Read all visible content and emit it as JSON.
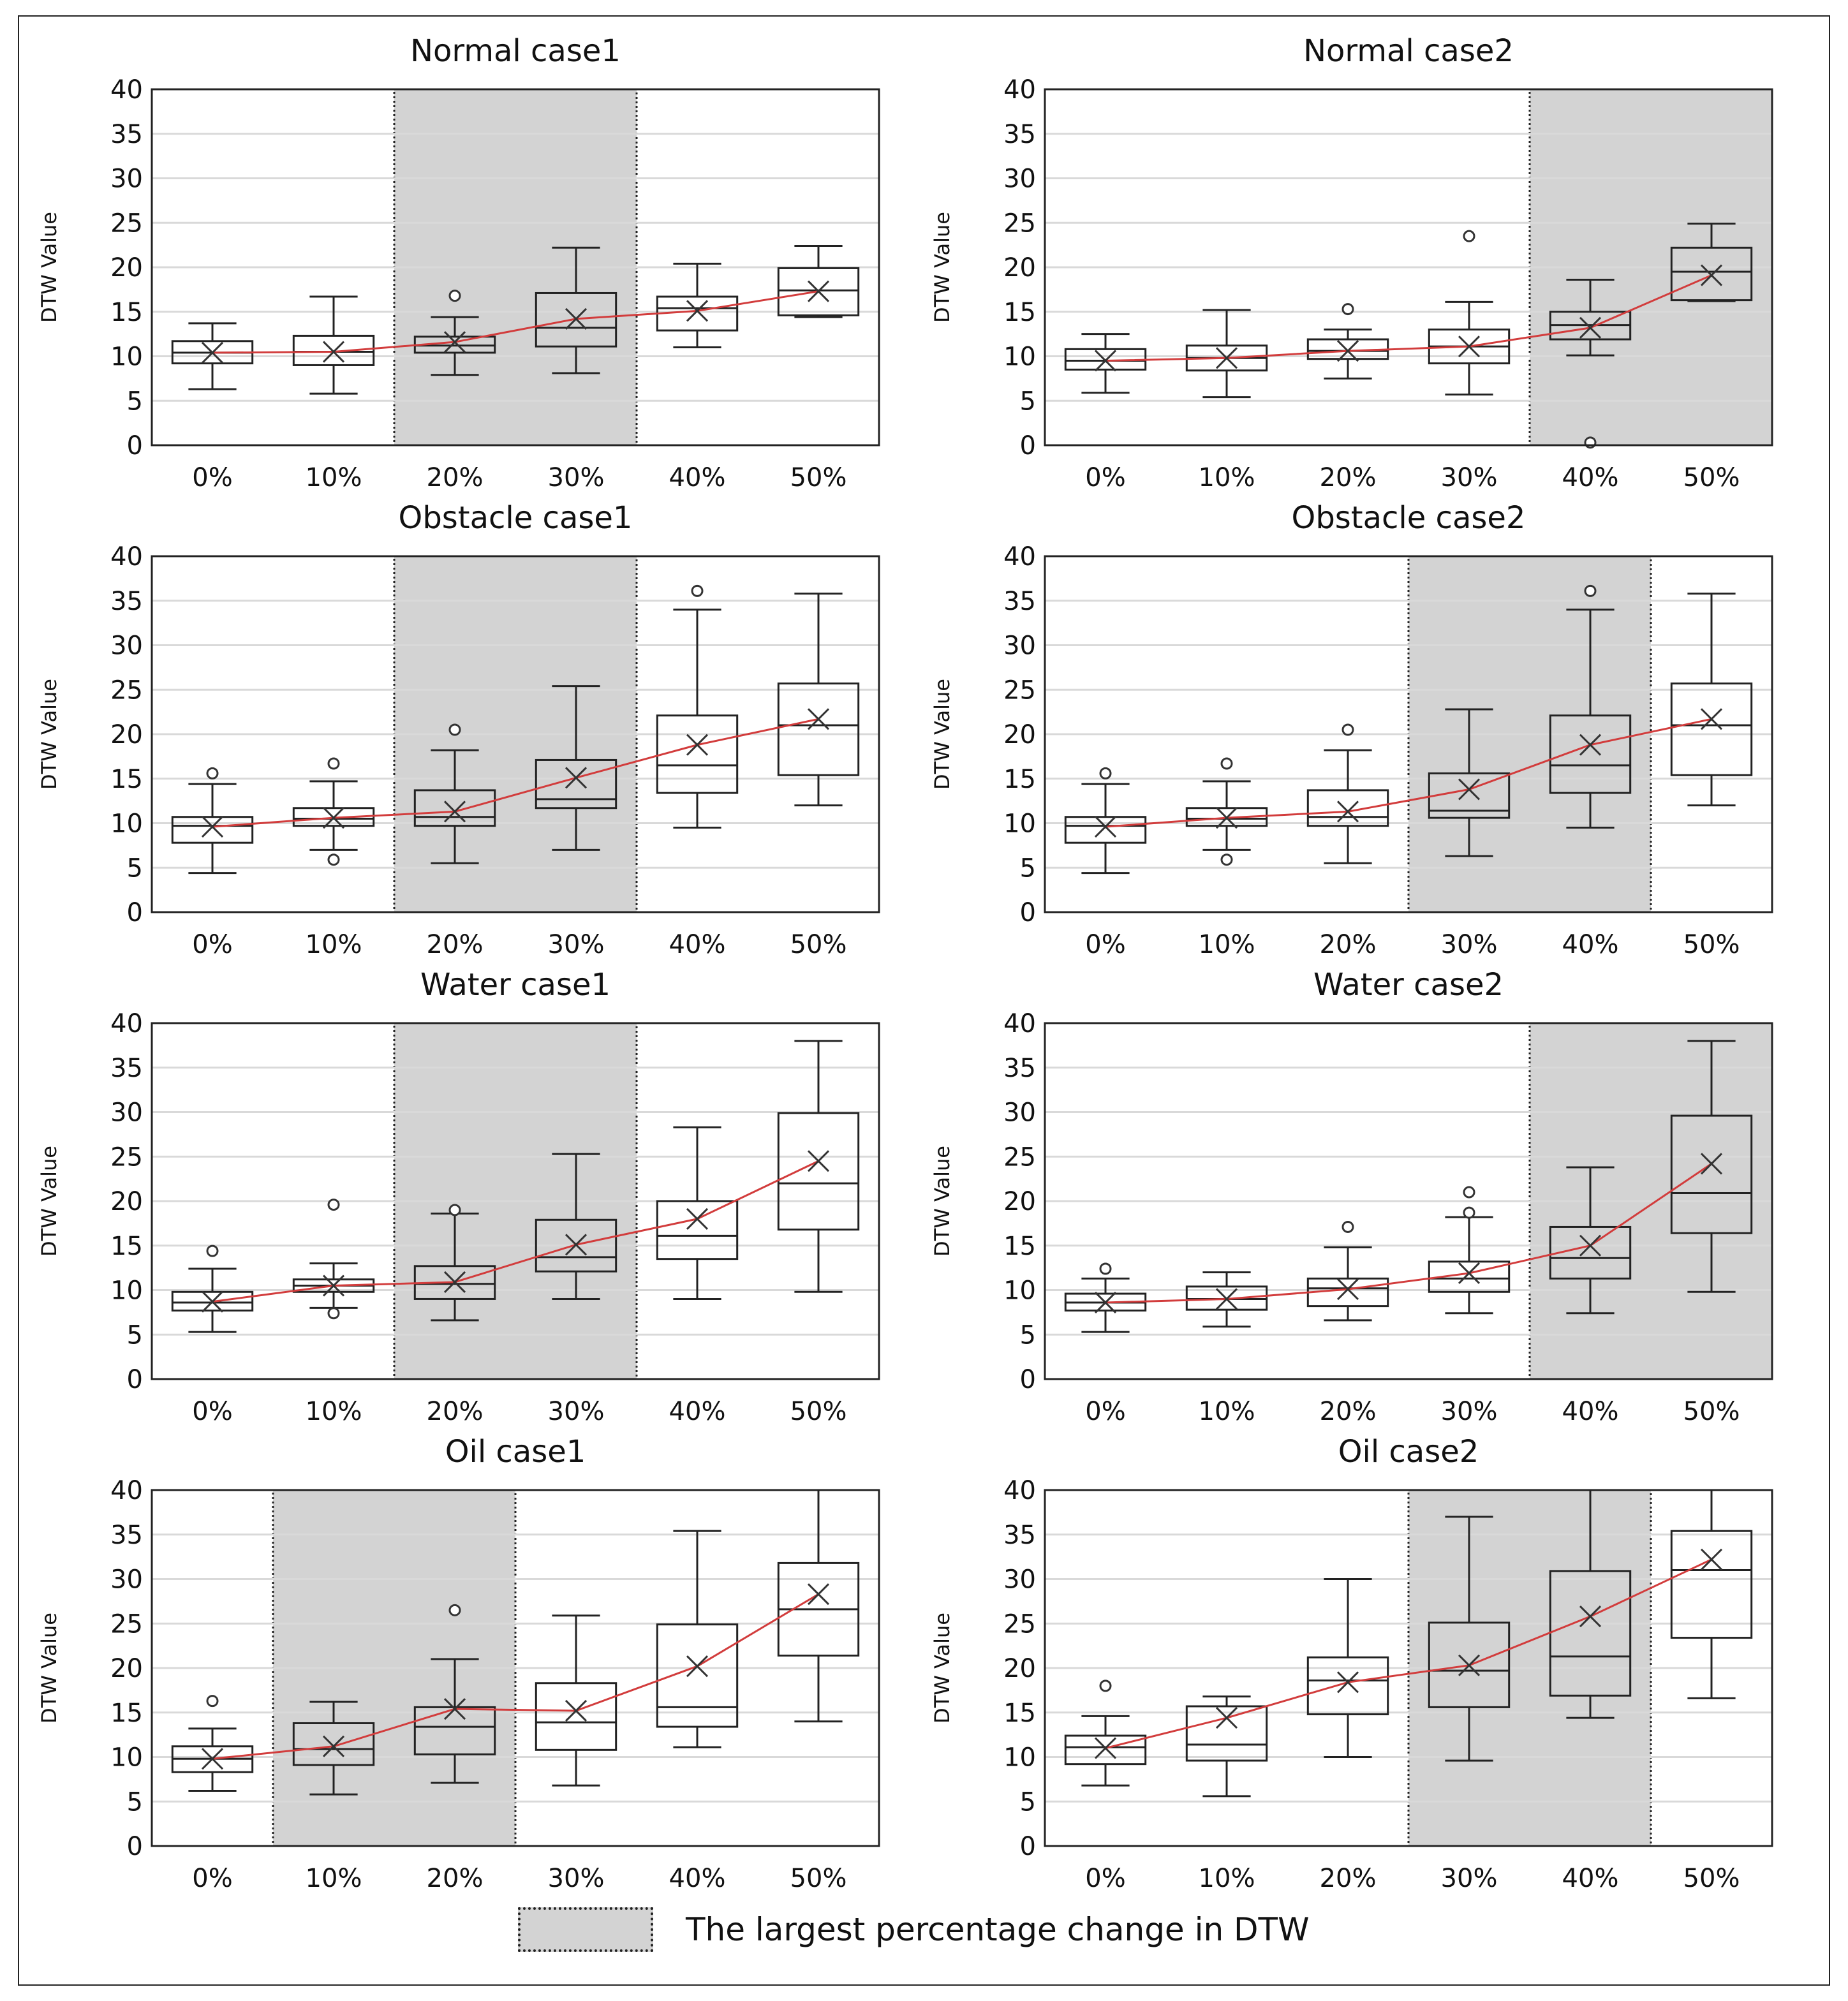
{
  "chart_data": [
    {
      "type": "box",
      "title": "Normal case1",
      "ylabel": "DTW Value",
      "ylim": [
        0,
        40
      ],
      "categories": [
        "0%",
        "10%",
        "20%",
        "30%",
        "40%",
        "50%"
      ],
      "highlight": [
        "20%",
        "30%"
      ],
      "boxes": [
        {
          "min": 6.3,
          "q1": 9.2,
          "median": 10.4,
          "q3": 11.7,
          "max": 13.7,
          "mean": 10.4,
          "outliers": []
        },
        {
          "min": 5.8,
          "q1": 9.0,
          "median": 10.5,
          "q3": 12.3,
          "max": 16.7,
          "mean": 10.5,
          "outliers": []
        },
        {
          "min": 7.9,
          "q1": 10.4,
          "median": 11.2,
          "q3": 12.2,
          "max": 14.4,
          "mean": 11.6,
          "outliers": [
            16.8
          ]
        },
        {
          "min": 8.1,
          "q1": 11.1,
          "median": 13.2,
          "q3": 17.1,
          "max": 22.2,
          "mean": 14.2,
          "outliers": []
        },
        {
          "min": 11.0,
          "q1": 12.9,
          "median": 15.4,
          "q3": 16.7,
          "max": 20.4,
          "mean": 15.1,
          "outliers": []
        },
        {
          "min": 14.4,
          "q1": 14.6,
          "median": 17.4,
          "q3": 19.9,
          "max": 22.4,
          "mean": 17.3,
          "outliers": []
        }
      ]
    },
    {
      "type": "box",
      "title": "Normal case2",
      "ylabel": "DTW Value",
      "ylim": [
        0,
        40
      ],
      "categories": [
        "0%",
        "10%",
        "20%",
        "30%",
        "40%",
        "50%"
      ],
      "highlight": [
        "40%",
        "50%"
      ],
      "boxes": [
        {
          "min": 5.9,
          "q1": 8.5,
          "median": 9.5,
          "q3": 10.8,
          "max": 12.5,
          "mean": 9.5,
          "outliers": []
        },
        {
          "min": 5.4,
          "q1": 8.4,
          "median": 9.8,
          "q3": 11.2,
          "max": 15.2,
          "mean": 9.8,
          "outliers": []
        },
        {
          "min": 7.5,
          "q1": 9.7,
          "median": 10.6,
          "q3": 11.9,
          "max": 13.0,
          "mean": 10.6,
          "outliers": [
            15.3
          ]
        },
        {
          "min": 5.7,
          "q1": 9.2,
          "median": 11.1,
          "q3": 13.0,
          "max": 16.1,
          "mean": 11.1,
          "outliers": [
            23.5
          ]
        },
        {
          "min": 10.1,
          "q1": 11.9,
          "median": 13.5,
          "q3": 15.0,
          "max": 18.6,
          "mean": 13.2,
          "outliers": [
            0.3
          ]
        },
        {
          "min": 16.2,
          "q1": 16.3,
          "median": 19.5,
          "q3": 22.2,
          "max": 24.9,
          "mean": 19.1,
          "outliers": []
        }
      ]
    },
    {
      "type": "box",
      "title": "Obstacle case1",
      "ylabel": "DTW Value",
      "ylim": [
        0,
        40
      ],
      "categories": [
        "0%",
        "10%",
        "20%",
        "30%",
        "40%",
        "50%"
      ],
      "highlight": [
        "20%",
        "30%"
      ],
      "boxes": [
        {
          "min": 4.4,
          "q1": 7.8,
          "median": 9.7,
          "q3": 10.7,
          "max": 14.4,
          "mean": 9.6,
          "outliers": [
            15.6
          ]
        },
        {
          "min": 7.0,
          "q1": 9.7,
          "median": 10.5,
          "q3": 11.7,
          "max": 14.7,
          "mean": 10.6,
          "outliers": [
            5.9,
            16.7
          ]
        },
        {
          "min": 5.5,
          "q1": 9.7,
          "median": 10.7,
          "q3": 13.7,
          "max": 18.2,
          "mean": 11.3,
          "outliers": [
            20.5
          ]
        },
        {
          "min": 7.0,
          "q1": 11.7,
          "median": 12.7,
          "q3": 17.1,
          "max": 25.4,
          "mean": 15.1,
          "outliers": []
        },
        {
          "min": 9.5,
          "q1": 13.4,
          "median": 16.5,
          "q3": 22.1,
          "max": 34.0,
          "mean": 18.8,
          "outliers": [
            36.1
          ]
        },
        {
          "min": 12.0,
          "q1": 15.4,
          "median": 21.0,
          "q3": 25.7,
          "max": 35.8,
          "mean": 21.7,
          "outliers": []
        }
      ]
    },
    {
      "type": "box",
      "title": "Obstacle case2",
      "ylabel": "DTW Value",
      "ylim": [
        0,
        40
      ],
      "categories": [
        "0%",
        "10%",
        "20%",
        "30%",
        "40%",
        "50%"
      ],
      "highlight": [
        "30%",
        "40%"
      ],
      "boxes": [
        {
          "min": 4.4,
          "q1": 7.8,
          "median": 9.7,
          "q3": 10.7,
          "max": 14.4,
          "mean": 9.6,
          "outliers": [
            15.6
          ]
        },
        {
          "min": 7.0,
          "q1": 9.7,
          "median": 10.5,
          "q3": 11.7,
          "max": 14.7,
          "mean": 10.6,
          "outliers": [
            5.9,
            16.7
          ]
        },
        {
          "min": 5.5,
          "q1": 9.7,
          "median": 10.7,
          "q3": 13.7,
          "max": 18.2,
          "mean": 11.3,
          "outliers": [
            20.5
          ]
        },
        {
          "min": 6.3,
          "q1": 10.6,
          "median": 11.4,
          "q3": 15.6,
          "max": 22.8,
          "mean": 13.8,
          "outliers": []
        },
        {
          "min": 9.5,
          "q1": 13.4,
          "median": 16.5,
          "q3": 22.1,
          "max": 34.0,
          "mean": 18.8,
          "outliers": [
            36.1
          ]
        },
        {
          "min": 12.0,
          "q1": 15.4,
          "median": 21.0,
          "q3": 25.7,
          "max": 35.8,
          "mean": 21.7,
          "outliers": []
        }
      ]
    },
    {
      "type": "box",
      "title": "Water case1",
      "ylabel": "DTW Value",
      "ylim": [
        0,
        40
      ],
      "categories": [
        "0%",
        "10%",
        "20%",
        "30%",
        "40%",
        "50%"
      ],
      "highlight": [
        "20%",
        "30%"
      ],
      "boxes": [
        {
          "min": 5.3,
          "q1": 7.7,
          "median": 8.6,
          "q3": 9.8,
          "max": 12.4,
          "mean": 8.7,
          "outliers": [
            14.4
          ]
        },
        {
          "min": 8.0,
          "q1": 9.8,
          "median": 10.5,
          "q3": 11.2,
          "max": 13.0,
          "mean": 10.5,
          "outliers": [
            7.4,
            19.6
          ]
        },
        {
          "min": 6.6,
          "q1": 9.0,
          "median": 10.7,
          "q3": 12.7,
          "max": 18.6,
          "mean": 10.9,
          "outliers": [
            19.0
          ]
        },
        {
          "min": 9.0,
          "q1": 12.1,
          "median": 13.7,
          "q3": 17.9,
          "max": 25.3,
          "mean": 15.1,
          "outliers": []
        },
        {
          "min": 9.0,
          "q1": 13.5,
          "median": 16.1,
          "q3": 20.0,
          "max": 28.3,
          "mean": 18.0,
          "outliers": []
        },
        {
          "min": 9.8,
          "q1": 16.8,
          "median": 22.0,
          "q3": 29.9,
          "max": 38.0,
          "mean": 24.5,
          "outliers": []
        }
      ]
    },
    {
      "type": "box",
      "title": "Water case2",
      "ylabel": "DTW Value",
      "ylim": [
        0,
        40
      ],
      "categories": [
        "0%",
        "10%",
        "20%",
        "30%",
        "40%",
        "50%"
      ],
      "highlight": [
        "40%",
        "50%"
      ],
      "boxes": [
        {
          "min": 5.3,
          "q1": 7.7,
          "median": 8.6,
          "q3": 9.6,
          "max": 11.3,
          "mean": 8.6,
          "outliers": [
            12.4
          ]
        },
        {
          "min": 5.9,
          "q1": 7.8,
          "median": 9.0,
          "q3": 10.4,
          "max": 12.0,
          "mean": 9.0,
          "outliers": []
        },
        {
          "min": 6.6,
          "q1": 8.2,
          "median": 10.2,
          "q3": 11.3,
          "max": 14.8,
          "mean": 10.1,
          "outliers": [
            17.1
          ]
        },
        {
          "min": 7.4,
          "q1": 9.8,
          "median": 11.3,
          "q3": 13.2,
          "max": 18.2,
          "mean": 11.9,
          "outliers": [
            18.7,
            21.0
          ]
        },
        {
          "min": 7.4,
          "q1": 11.3,
          "median": 13.6,
          "q3": 17.1,
          "max": 23.8,
          "mean": 15.0,
          "outliers": []
        },
        {
          "min": 9.8,
          "q1": 16.4,
          "median": 20.9,
          "q3": 29.6,
          "max": 38.0,
          "mean": 24.2,
          "outliers": []
        }
      ]
    },
    {
      "type": "box",
      "title": "Oil case1",
      "ylabel": "DTW Value",
      "ylim": [
        0,
        40
      ],
      "categories": [
        "0%",
        "10%",
        "20%",
        "30%",
        "40%",
        "50%"
      ],
      "highlight": [
        "10%",
        "20%"
      ],
      "boxes": [
        {
          "min": 6.2,
          "q1": 8.3,
          "median": 9.8,
          "q3": 11.2,
          "max": 13.2,
          "mean": 9.8,
          "outliers": [
            16.3
          ]
        },
        {
          "min": 5.8,
          "q1": 9.1,
          "median": 10.9,
          "q3": 13.8,
          "max": 16.2,
          "mean": 11.2,
          "outliers": []
        },
        {
          "min": 7.1,
          "q1": 10.3,
          "median": 13.4,
          "q3": 15.6,
          "max": 21.0,
          "mean": 15.4,
          "outliers": [
            26.5
          ]
        },
        {
          "min": 6.8,
          "q1": 10.8,
          "median": 13.9,
          "q3": 18.3,
          "max": 25.9,
          "mean": 15.2,
          "outliers": []
        },
        {
          "min": 11.1,
          "q1": 13.4,
          "median": 15.6,
          "q3": 24.9,
          "max": 35.4,
          "mean": 20.2,
          "outliers": []
        },
        {
          "min": 14.0,
          "q1": 21.4,
          "median": 26.6,
          "q3": 31.8,
          "max": 40.0,
          "mean": 28.3,
          "outliers": []
        }
      ]
    },
    {
      "type": "box",
      "title": "Oil case2",
      "ylabel": "DTW Value",
      "ylim": [
        0,
        40
      ],
      "categories": [
        "0%",
        "10%",
        "20%",
        "30%",
        "40%",
        "50%"
      ],
      "highlight": [
        "30%",
        "40%"
      ],
      "boxes": [
        {
          "min": 6.8,
          "q1": 9.2,
          "median": 11.1,
          "q3": 12.4,
          "max": 14.6,
          "mean": 11.0,
          "outliers": [
            18.0
          ]
        },
        {
          "min": 5.6,
          "q1": 9.6,
          "median": 11.4,
          "q3": 15.7,
          "max": 16.8,
          "mean": 14.4,
          "outliers": []
        },
        {
          "min": 10.0,
          "q1": 14.8,
          "median": 18.6,
          "q3": 21.2,
          "max": 30.0,
          "mean": 18.4,
          "outliers": []
        },
        {
          "min": 9.6,
          "q1": 15.6,
          "median": 19.7,
          "q3": 25.1,
          "max": 37.0,
          "mean": 20.3,
          "outliers": []
        },
        {
          "min": 14.4,
          "q1": 16.9,
          "median": 21.3,
          "q3": 30.9,
          "max": 40.0,
          "mean": 25.8,
          "outliers": []
        },
        {
          "min": 16.6,
          "q1": 23.4,
          "median": 31.0,
          "q3": 35.4,
          "max": 40.0,
          "mean": 32.2,
          "outliers": []
        }
      ]
    }
  ],
  "y_ticks": [
    0,
    5,
    10,
    15,
    20,
    25,
    30,
    35,
    40
  ],
  "legend": {
    "label": "The largest percentage change in DTW"
  },
  "colors": {
    "highlight": "#d3d3d3",
    "mean_line": "#d23c3c",
    "box_stroke": "#222222",
    "grid": "#d9d9d9"
  }
}
